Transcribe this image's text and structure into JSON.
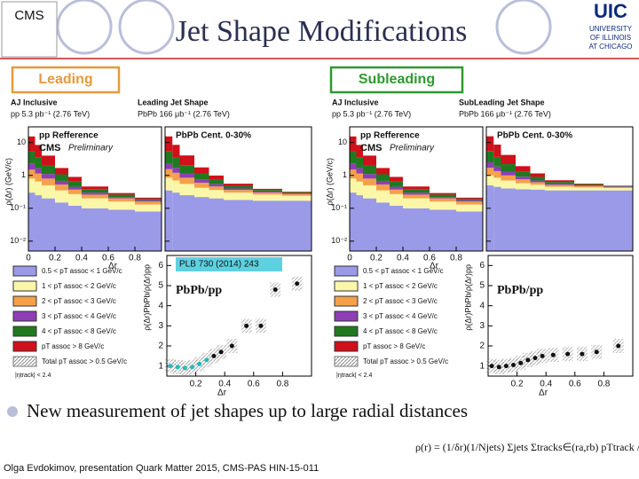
{
  "header": {
    "title": "Jet Shape Modifications",
    "cms_logo": "CMS",
    "uic_logo": {
      "name": "UIC",
      "lines": [
        "UNIVERSITY",
        "OF ILLINOIS",
        "AT CHICAGO"
      ]
    }
  },
  "spectra": {
    "ylabel": "ρ(Δr) (GeV/c)",
    "xlabel": "Δr",
    "cms": "CMS",
    "preliminary": "Preliminary",
    "log_scale": true,
    "xlim": [
      0,
      1
    ],
    "xticks": [
      0,
      0.2,
      0.4,
      0.6,
      0.8
    ],
    "ylim": [
      0.005,
      30
    ],
    "yticks": [
      {
        "value": 0.01,
        "label": "10⁻²"
      },
      {
        "value": 0.1,
        "label": "10⁻¹"
      },
      {
        "value": 1,
        "label": "1"
      },
      {
        "value": 10,
        "label": "10"
      }
    ],
    "bins": [
      0,
      0.05,
      0.1,
      0.2,
      0.3,
      0.4,
      0.6,
      0.8,
      1.0
    ],
    "pp": {
      "title": "pp Refference",
      "layers": [
        [
          0.3,
          0.25,
          0.2,
          0.15,
          0.12,
          0.1,
          0.09,
          0.08
        ],
        [
          0.5,
          0.4,
          0.3,
          0.2,
          0.15,
          0.1,
          0.07,
          0.05
        ],
        [
          0.7,
          0.5,
          0.3,
          0.18,
          0.1,
          0.06,
          0.04,
          0.03
        ],
        [
          0.8,
          0.5,
          0.3,
          0.15,
          0.08,
          0.04,
          0.02,
          0.015
        ],
        [
          3,
          1.8,
          0.9,
          0.4,
          0.2,
          0.08,
          0.04,
          0.02
        ],
        [
          10,
          5,
          2,
          0.6,
          0.25,
          0.08,
          0.03,
          0.015
        ]
      ]
    }
  },
  "legend": {
    "layers": [
      {
        "name": "0.5 < pT assoc < 1 GeV/c",
        "color": "#9a9ae8"
      },
      {
        "name": "1 < pT assoc < 2 GeV/c",
        "color": "#fbf7a8"
      },
      {
        "name": "2 < pT assoc < 3 GeV/c",
        "color": "#f5a04a"
      },
      {
        "name": "3 < pT assoc < 4 GeV/c",
        "color": "#8e3fb5"
      },
      {
        "name": "4 < pT assoc < 8 GeV/c",
        "color": "#1f7a1f"
      },
      {
        "name": "pT assoc > 8 GeV/c",
        "color": "#d0101a"
      }
    ],
    "total": "Total pT assoc > 0.5 GeV/c",
    "track_cut": "|ηtrack| < 2.4"
  },
  "ratio": {
    "xlim": [
      0,
      1
    ],
    "xticks": [
      0.2,
      0.4,
      0.6,
      0.8
    ],
    "xlabel": "Δr",
    "ylim": [
      0.5,
      6.5
    ],
    "yticks": [
      1,
      2,
      3,
      4,
      5,
      6
    ],
    "ylabel": "ρ(Δr)PbPb/ρ(Δr)pp",
    "title": "PbPb/pp"
  },
  "panels": [
    {
      "label": "Leading",
      "color": "#e69a3c",
      "pp_caption": [
        "AJ Inclusive",
        "pp 5.3 pb⁻¹ (2.76 TeV)"
      ],
      "pbpb_caption": [
        "Leading Jet Shape",
        "PbPb 166 μb⁻¹ (2.76 TeV)"
      ],
      "pbpb": {
        "title": "PbPb Cent. 0-30%",
        "layers": [
          [
            0.35,
            0.3,
            0.25,
            0.22,
            0.2,
            0.18,
            0.17,
            0.17
          ],
          [
            0.5,
            0.4,
            0.3,
            0.2,
            0.16,
            0.12,
            0.09,
            0.07
          ],
          [
            0.7,
            0.5,
            0.3,
            0.18,
            0.1,
            0.06,
            0.04,
            0.03
          ],
          [
            0.8,
            0.5,
            0.3,
            0.15,
            0.08,
            0.04,
            0.02,
            0.015
          ],
          [
            3,
            1.8,
            0.9,
            0.4,
            0.2,
            0.08,
            0.04,
            0.02
          ],
          [
            10,
            5,
            2,
            0.6,
            0.25,
            0.08,
            0.03,
            0.015
          ]
        ]
      },
      "ratio": {
        "reference": "PLB 730 (2014) 243",
        "x": [
          0.025,
          0.075,
          0.125,
          0.175,
          0.225,
          0.275,
          0.325,
          0.375,
          0.45,
          0.55,
          0.65,
          0.75,
          0.9
        ],
        "values": [
          1.0,
          0.95,
          0.9,
          0.95,
          1.1,
          1.3,
          1.5,
          1.7,
          2.0,
          3.0,
          3.0,
          4.8,
          5.1
        ]
      }
    },
    {
      "label": "Subleading",
      "color": "#2e9a2e",
      "pp_caption": [
        "AJ Inclusive",
        "pp 5.3 pb⁻¹ (2.76 TeV)"
      ],
      "pbpb_caption": [
        "SubLeading Jet Shape",
        "PbPb 166 μb⁻¹ (2.76 TeV)"
      ],
      "pbpb": {
        "title": "PbPb Cent. 0-30%",
        "layers": [
          [
            0.5,
            0.45,
            0.4,
            0.38,
            0.37,
            0.35,
            0.35,
            0.35
          ],
          [
            0.5,
            0.4,
            0.3,
            0.2,
            0.15,
            0.1,
            0.08,
            0.06
          ],
          [
            0.7,
            0.5,
            0.3,
            0.18,
            0.1,
            0.06,
            0.04,
            0.03
          ],
          [
            0.8,
            0.5,
            0.3,
            0.15,
            0.08,
            0.04,
            0.02,
            0.015
          ],
          [
            3,
            1.8,
            0.9,
            0.4,
            0.2,
            0.08,
            0.04,
            0.02
          ],
          [
            10,
            5,
            2,
            0.6,
            0.25,
            0.08,
            0.03,
            0.015
          ]
        ]
      },
      "ratio": {
        "x": [
          0.025,
          0.075,
          0.125,
          0.175,
          0.225,
          0.275,
          0.325,
          0.375,
          0.45,
          0.55,
          0.65,
          0.75,
          0.9
        ],
        "values": [
          1.0,
          0.95,
          1.0,
          1.05,
          1.15,
          1.3,
          1.4,
          1.5,
          1.55,
          1.6,
          1.6,
          1.7,
          2.0
        ]
      }
    }
  ],
  "bullet": "New measurement of jet shapes up to large radial distances",
  "formula": "ρ(r) = (1/δr)(1/Njets) Σjets Σtracks∈(ra,rb) pTtrack / pTjet",
  "citation": "Olga Evdokimov, presentation Quark Matter 2015, CMS-PAS HIN-15-011"
}
